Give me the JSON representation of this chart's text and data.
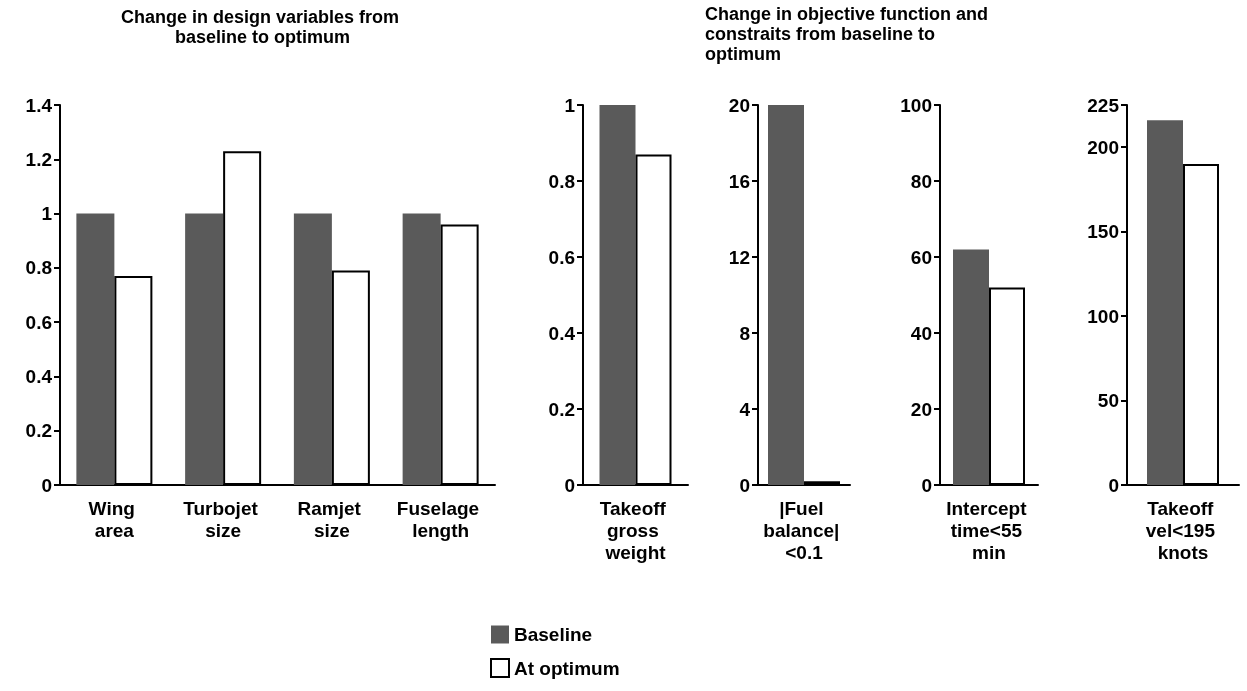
{
  "chart_data": [
    {
      "type": "bar",
      "title": "Change in design variables from baseline to optimum",
      "categories": [
        "Wing area",
        "Turbojet size",
        "Ramjet size",
        "Fuselage length"
      ],
      "series": [
        {
          "name": "Baseline",
          "color": "#5a5a5a",
          "values": [
            1,
            1,
            1,
            1
          ]
        },
        {
          "name": "At optimum",
          "color": "#ffffff",
          "values": [
            0.77,
            1.23,
            0.79,
            0.96
          ]
        }
      ],
      "ylim": [
        0,
        1.4
      ],
      "yticks": [
        0,
        0.2,
        0.4,
        0.6,
        0.8,
        1,
        1.2,
        1.4
      ],
      "grid": false,
      "legend": "bottom"
    },
    {
      "type": "bar",
      "annotations": [
        "Change in objective function and constraits from baseline to optimum"
      ],
      "categories": [
        "Takeoff gross weight"
      ],
      "series": [
        {
          "color": "#5a5a5a",
          "values": [
            1
          ]
        },
        {
          "color": "#ffffff",
          "values": [
            0.87
          ]
        }
      ],
      "ylim": [
        0,
        1
      ],
      "yticks": [
        0,
        0.2,
        0.4,
        0.6,
        0.8,
        1
      ],
      "grid": false
    },
    {
      "type": "bar",
      "categories": [
        "|Fuel balance| <0.1"
      ],
      "series": [
        {
          "color": "#5a5a5a",
          "values": [
            20
          ]
        },
        {
          "color": "#ffffff",
          "values": [
            0.2
          ]
        }
      ],
      "ylim": [
        0,
        20
      ],
      "yticks": [
        0,
        4,
        8,
        12,
        16,
        20
      ],
      "grid": false
    },
    {
      "type": "bar",
      "categories": [
        "Intercept time<55 min"
      ],
      "series": [
        {
          "color": "#5a5a5a",
          "values": [
            62
          ]
        },
        {
          "color": "#ffffff",
          "values": [
            52
          ]
        }
      ],
      "ylim": [
        0,
        100
      ],
      "yticks": [
        0,
        20,
        40,
        60,
        80,
        100
      ],
      "grid": false
    },
    {
      "type": "bar",
      "categories": [
        "Takeoff vel<195 knots"
      ],
      "series": [
        {
          "color": "#5a5a5a",
          "values": [
            216
          ]
        },
        {
          "color": "#ffffff",
          "values": [
            190
          ]
        }
      ],
      "ylim": [
        0,
        225
      ],
      "yticks": [
        0,
        50,
        100,
        150,
        200,
        225
      ],
      "grid": false
    }
  ]
}
